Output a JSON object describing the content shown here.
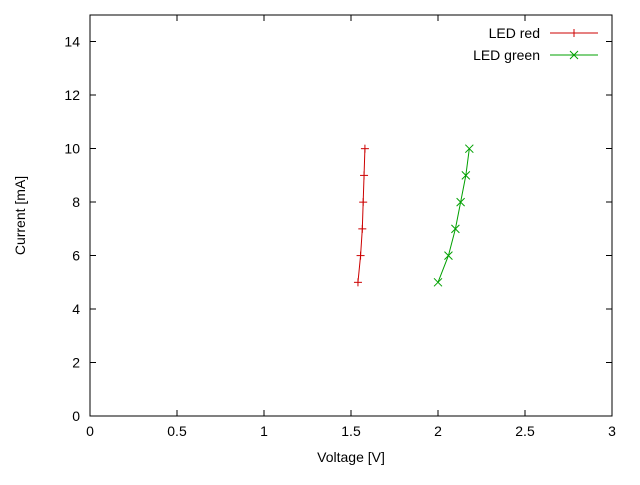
{
  "chart_data": {
    "type": "line",
    "title": "",
    "xlabel": "Voltage [V]",
    "ylabel": "Current [mA]",
    "xlim": [
      0,
      3
    ],
    "ylim": [
      0,
      15
    ],
    "grid": false,
    "legend_position": "top-right-inside",
    "xticks": {
      "values": [
        0,
        0.5,
        1,
        1.5,
        2,
        2.5,
        3
      ],
      "labels": [
        "0",
        "0.5",
        "1",
        "1.5",
        "2",
        "2.5",
        "3"
      ]
    },
    "yticks": {
      "values": [
        0,
        2,
        4,
        6,
        8,
        10,
        12,
        14
      ],
      "labels": [
        "0",
        "2",
        "4",
        "6",
        "8",
        "10",
        "12",
        "14"
      ]
    },
    "series": [
      {
        "name": "LED red",
        "color": "#cc0000",
        "marker": "plus",
        "points": [
          [
            1.54,
            5
          ],
          [
            1.555,
            6
          ],
          [
            1.565,
            7
          ],
          [
            1.57,
            8
          ],
          [
            1.575,
            9
          ],
          [
            1.58,
            10
          ]
        ]
      },
      {
        "name": "LED green",
        "color": "#00a000",
        "marker": "x",
        "points": [
          [
            2.0,
            5
          ],
          [
            2.06,
            6
          ],
          [
            2.1,
            7
          ],
          [
            2.13,
            8
          ],
          [
            2.16,
            9
          ],
          [
            2.18,
            10
          ]
        ]
      }
    ],
    "plot_style": {
      "border_color": "#000000",
      "background": "#ffffff",
      "tick_length": 6,
      "marker_half_size": 4
    }
  }
}
